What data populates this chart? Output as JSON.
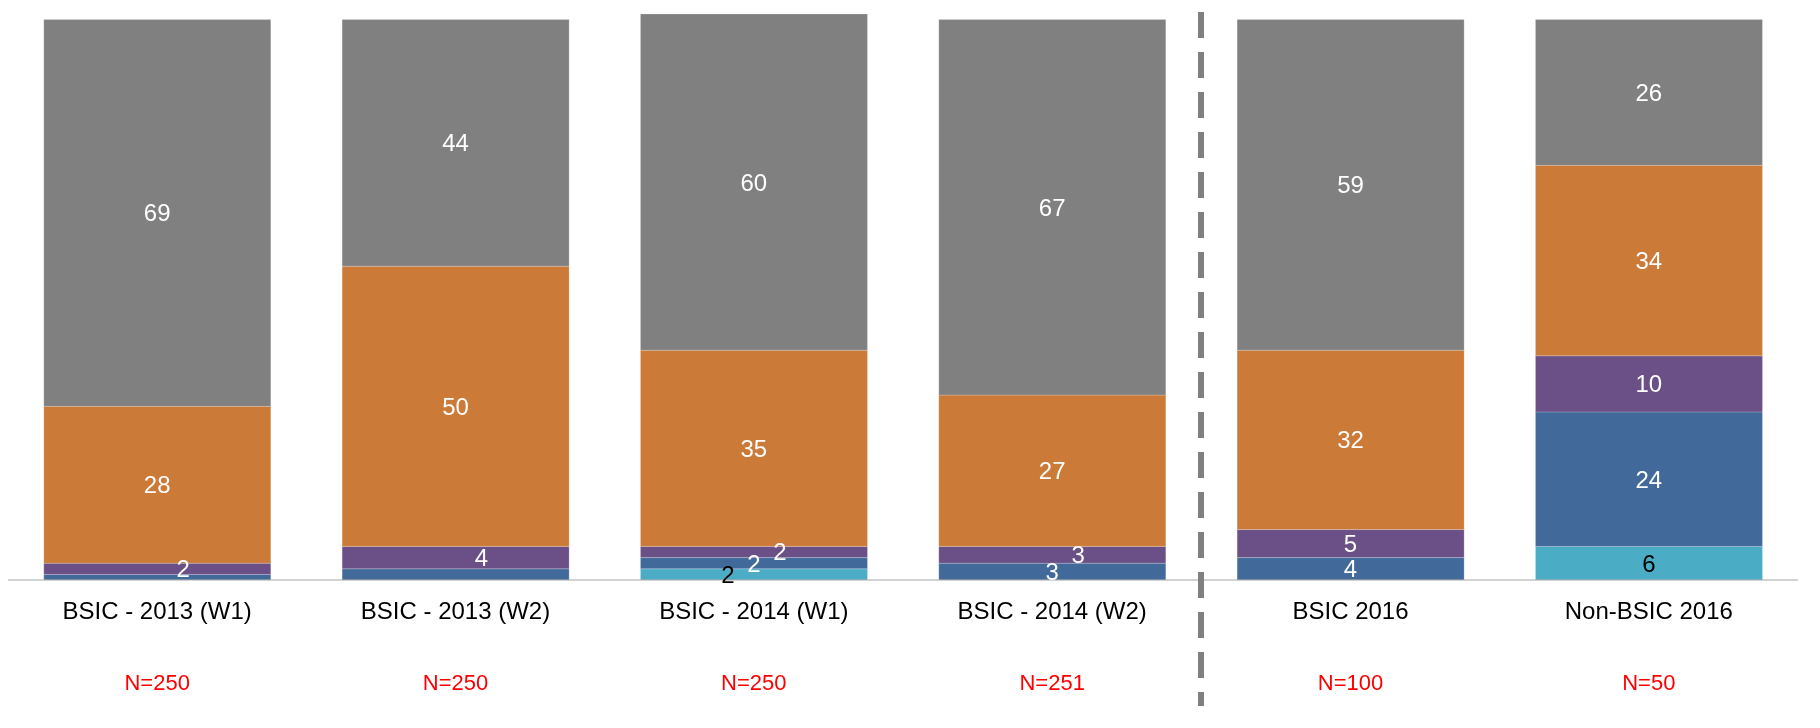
{
  "chart_data": {
    "type": "bar",
    "stacked": true,
    "categories": [
      "BSIC - 2013 (W1)",
      "BSIC - 2013 (W2)",
      "BSIC - 2014 (W1)",
      "BSIC - 2014 (W2)",
      "BSIC 2016",
      "Non-BSIC 2016"
    ],
    "series": [
      {
        "color": "#4bacc6",
        "values": [
          0,
          0,
          2,
          0,
          0,
          6
        ],
        "value_labels": [
          null,
          null,
          "2",
          null,
          null,
          "6"
        ]
      },
      {
        "color": "#416a9b",
        "values": [
          1,
          2,
          2,
          3,
          4,
          24
        ],
        "value_labels": [
          null,
          null,
          "2",
          "3",
          "4",
          "24"
        ]
      },
      {
        "color": "#6a5087",
        "values": [
          2,
          4,
          2,
          3,
          5,
          10
        ],
        "value_labels": [
          "2",
          "4",
          "2",
          "3",
          "5",
          "10"
        ]
      },
      {
        "color": "#cc7a38",
        "values": [
          28,
          50,
          35,
          27,
          32,
          34
        ],
        "value_labels": [
          "28",
          "50",
          "35",
          "27",
          "32",
          "34"
        ]
      },
      {
        "color": "#808080",
        "values": [
          69,
          44,
          60,
          67,
          59,
          26
        ],
        "value_labels": [
          "69",
          "44",
          "60",
          "67",
          "59",
          "26"
        ]
      }
    ],
    "ylim": [
      0,
      101
    ],
    "tick_labels": "x",
    "grid": false,
    "legend": false,
    "annotations": [
      "N=250",
      "N=250",
      "N=250",
      "N=251",
      "N=100",
      "N=50"
    ]
  }
}
